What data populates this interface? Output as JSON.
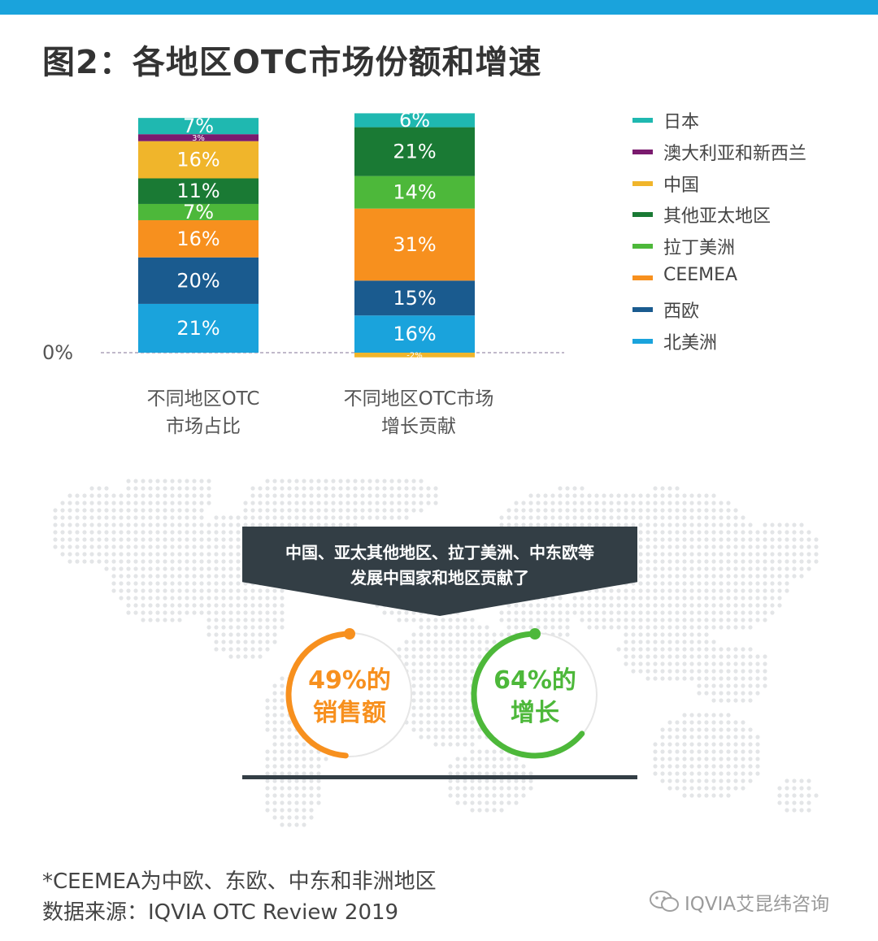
{
  "title": "图2：各地区OTC市场份额和增速",
  "colors": {
    "top_bar": "#1aa3dc",
    "japan": "#1fb8b0",
    "anz": "#7a1a6e",
    "china": "#f0b52b",
    "other_apac": "#1a7a34",
    "latam": "#4db83a",
    "ceemea": "#f7901e",
    "western_europe": "#1a5b8f",
    "north_america": "#1aa3dc",
    "banner": "#333e45",
    "kpi_sales": "#f7901e",
    "kpi_growth": "#4db83a"
  },
  "chart_data": {
    "type": "bar",
    "stacked": true,
    "categories": [
      "不同地区OTC市场占比",
      "不同地区OTC市场增长贡献"
    ],
    "category_lines": [
      [
        "不同地区OTC",
        "市场占比"
      ],
      [
        "不同地区OTC市场",
        "增长贡献"
      ]
    ],
    "series": [
      {
        "name": "北美洲",
        "color": "#1aa3dc",
        "values": [
          21,
          16
        ],
        "labels": [
          "21%",
          "16%"
        ]
      },
      {
        "name": "西欧",
        "color": "#1a5b8f",
        "values": [
          20,
          15
        ],
        "labels": [
          "20%",
          "15%"
        ]
      },
      {
        "name": "CEEMEA",
        "color": "#f7901e",
        "values": [
          16,
          31
        ],
        "labels": [
          "16%",
          "31%"
        ]
      },
      {
        "name": "拉丁美洲",
        "color": "#4db83a",
        "values": [
          7,
          14
        ],
        "labels": [
          "7%",
          "14%"
        ]
      },
      {
        "name": "其他亚太地区",
        "color": "#1a7a34",
        "values": [
          11,
          21
        ],
        "labels": [
          "11%",
          "21%"
        ]
      },
      {
        "name": "中国",
        "color": "#f0b52b",
        "values": [
          16,
          -2
        ],
        "labels": [
          "16%",
          "-2%"
        ]
      },
      {
        "name": "澳大利亚和新西兰",
        "color": "#7a1a6e",
        "values": [
          3,
          0
        ],
        "labels": [
          "3%",
          ""
        ]
      },
      {
        "name": "日本",
        "color": "#1fb8b0",
        "values": [
          7,
          6
        ],
        "labels": [
          "7%",
          "6%"
        ]
      }
    ],
    "zero_label": "0%",
    "legend_order": [
      "日本",
      "澳大利亚和新西兰",
      "中国",
      "其他亚太地区",
      "拉丁美洲",
      "CEEMEA",
      "西欧",
      "北美洲"
    ],
    "legend_position": "right",
    "grid": false
  },
  "callout": {
    "line1": "中国、亚太其他地区、拉丁美洲、中东欧等",
    "line2": "发展中国家和地区贡献了"
  },
  "kpis": [
    {
      "line1": "49%的",
      "line2": "销售额",
      "value": 49,
      "color": "#f7901e"
    },
    {
      "line1": "64%的",
      "line2": "增长",
      "value": 64,
      "color": "#4db83a"
    }
  ],
  "footnote": "*CEEMEA为中欧、东欧、中东和非洲地区",
  "source": "数据来源：IQVIA OTC Review 2019",
  "watermark": "IQVIA艾昆纬咨询"
}
